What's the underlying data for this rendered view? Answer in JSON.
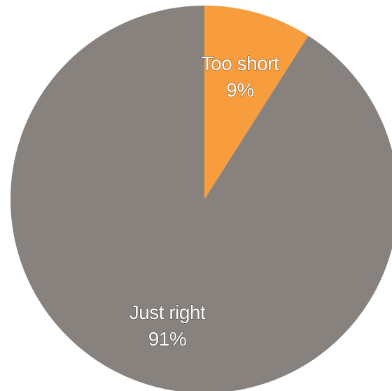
{
  "chart_data": {
    "type": "pie",
    "title": "",
    "start_angle_deg": 0,
    "direction": "clockwise",
    "slices": [
      {
        "label": "Too short",
        "value": 9,
        "value_label": "9%",
        "color": "#F89D3D"
      },
      {
        "label": "Just right",
        "value": 91,
        "value_label": "91%",
        "color": "#87827E"
      }
    ]
  }
}
